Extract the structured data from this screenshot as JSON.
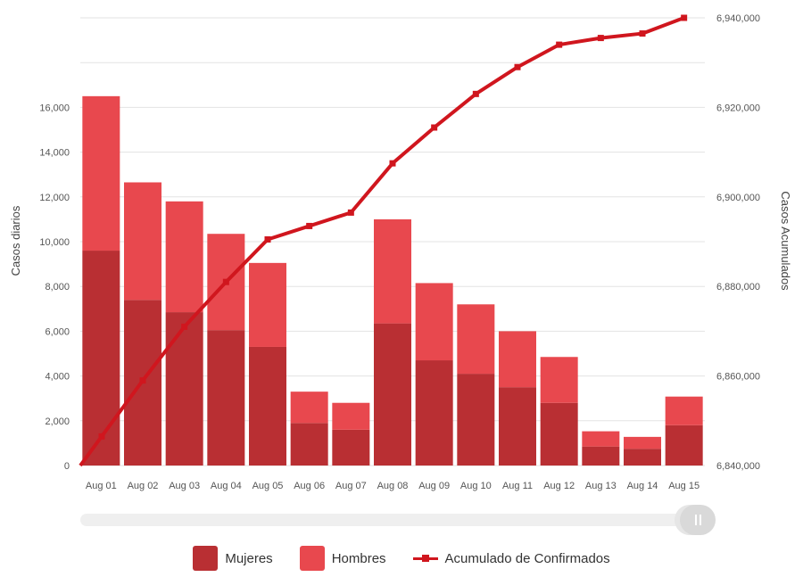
{
  "chart_data": {
    "type": "bar",
    "stacked": true,
    "categories": [
      "Aug 01",
      "Aug 02",
      "Aug 03",
      "Aug 04",
      "Aug 05",
      "Aug 06",
      "Aug 07",
      "Aug 08",
      "Aug 09",
      "Aug 10",
      "Aug 11",
      "Aug 12",
      "Aug 13",
      "Aug 14",
      "Aug 15"
    ],
    "series": [
      {
        "name": "Mujeres",
        "type": "bar",
        "axis": "left",
        "color": "#b92f33",
        "values": [
          9600,
          7400,
          6850,
          6050,
          5300,
          1900,
          1600,
          6350,
          4700,
          4100,
          3500,
          2800,
          850,
          750,
          1800
        ]
      },
      {
        "name": "Hombres",
        "type": "bar",
        "axis": "left",
        "color": "#e8484e",
        "values": [
          6900,
          5250,
          4950,
          4300,
          3750,
          1400,
          1200,
          4650,
          3450,
          3100,
          2500,
          2050,
          680,
          530,
          1280
        ]
      },
      {
        "name": "Acumulado de Confirmados",
        "type": "line",
        "axis": "right",
        "color": "#d0161e",
        "values": [
          6846500,
          6859000,
          6871000,
          6881000,
          6890500,
          6893500,
          6896500,
          6907500,
          6915500,
          6923000,
          6929000,
          6934000,
          6935500,
          6936500,
          6940000
        ]
      }
    ],
    "ylabel": "Casos diarios",
    "y2label": "Casos Acumulados",
    "ylim": [
      0,
      20000
    ],
    "y2lim": [
      6840000,
      6940000
    ],
    "yticks": [
      "0",
      "2,000",
      "4,000",
      "6,000",
      "8,000",
      "10,000",
      "12,000",
      "14,000",
      "16,000"
    ],
    "y2ticks": [
      "6,840,000",
      "6,860,000",
      "6,880,000",
      "6,900,000",
      "6,920,000",
      "6,940,000"
    ],
    "grid": true,
    "legend_position": "bottom"
  }
}
